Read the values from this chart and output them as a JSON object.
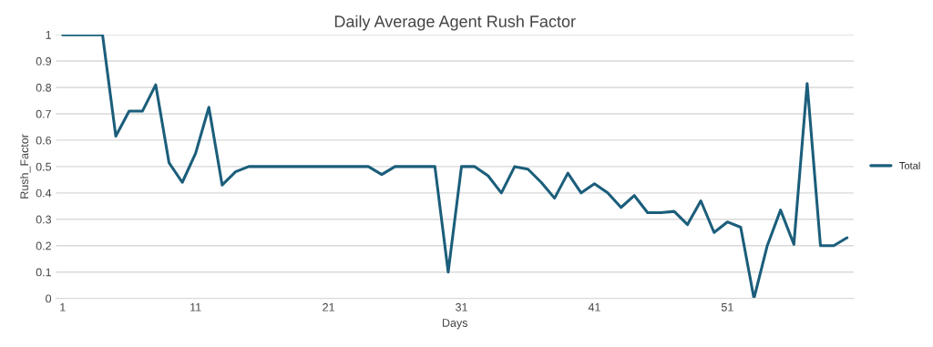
{
  "chart_data": {
    "type": "line",
    "title": "Daily Average Agent Rush Factor",
    "xlabel": "Days",
    "ylabel": "Rush_Factor",
    "categories": [
      "1",
      null,
      null,
      null,
      null,
      null,
      null,
      null,
      null,
      null,
      "11",
      null,
      null,
      null,
      null,
      null,
      null,
      null,
      null,
      null,
      "21",
      null,
      null,
      null,
      null,
      null,
      null,
      null,
      null,
      null,
      "31",
      null,
      null,
      null,
      null,
      null,
      null,
      null,
      null,
      null,
      "41",
      null,
      null,
      null,
      null,
      null,
      null,
      null,
      null,
      null,
      "51",
      null,
      null,
      null,
      null,
      null,
      null,
      null,
      null,
      null
    ],
    "series": [
      {
        "name": "Total",
        "color": "#1b5e7b",
        "values": [
          1,
          1,
          1,
          1,
          0.615,
          0.71,
          0.71,
          0.81,
          0.515,
          0.44,
          0.55,
          0.725,
          0.43,
          0.48,
          0.5,
          0.5,
          0.5,
          0.5,
          0.5,
          0.5,
          0.5,
          0.5,
          0.5,
          0.5,
          0.47,
          0.5,
          0.5,
          0.5,
          0.5,
          0.1,
          0.5,
          0.5,
          0.465,
          0.4,
          0.5,
          0.49,
          0.44,
          0.38,
          0.475,
          0.4,
          0.435,
          0.4,
          0.345,
          0.39,
          0.325,
          0.325,
          0.33,
          0.28,
          0.37,
          0.25,
          0.29,
          0.27,
          0,
          0.2,
          0.335,
          0.205,
          0.815,
          0.2,
          0.2,
          0.23
        ]
      }
    ],
    "ylim": [
      0,
      1
    ],
    "yticks": [
      0,
      0.1,
      0.2,
      0.3,
      0.4,
      0.5,
      0.6,
      0.7,
      0.8,
      0.9,
      1
    ],
    "grid": "y",
    "legend": "right",
    "marker": "none",
    "line_style": "solid"
  }
}
